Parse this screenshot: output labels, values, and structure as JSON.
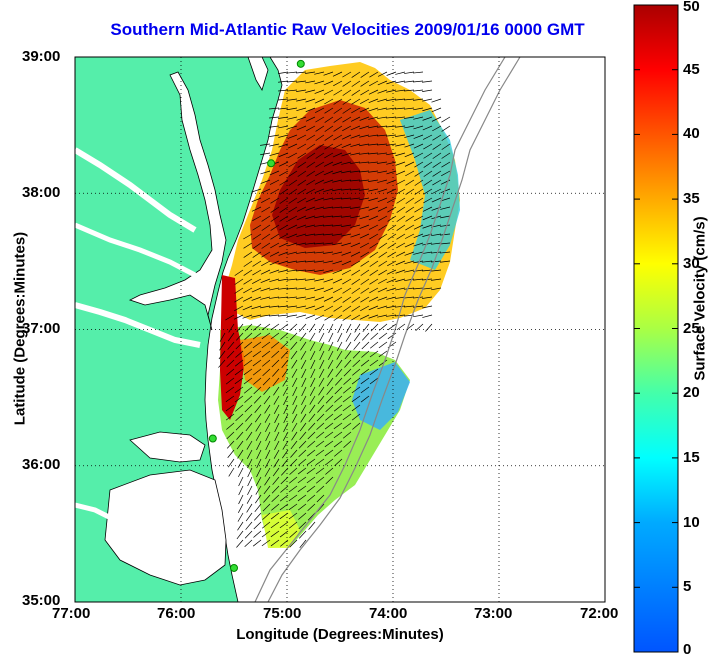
{
  "title": "Southern Mid-Atlantic Raw Velocities 2009/01/16 0000 GMT",
  "map": {
    "xlabel": "Longitude (Degrees:Minutes)",
    "ylabel": "Latitude (Degrees:Minutes)",
    "lon_range": [
      -77,
      -72
    ],
    "lat_range": [
      35,
      39
    ],
    "lon_ticks": [
      "77:00",
      "76:00",
      "75:00",
      "74:00",
      "73:00",
      "72:00"
    ],
    "lat_ticks": [
      "39:00",
      "38:00",
      "37:00",
      "36:00",
      "35:00"
    ],
    "grid": "dotted",
    "land_color": "#55eeaa",
    "background_color": "#ffffff",
    "sites": [
      [
        -74.87,
        38.95
      ],
      [
        -75.15,
        38.22
      ],
      [
        -75.7,
        36.2
      ],
      [
        -75.5,
        35.25
      ]
    ]
  },
  "colorbar": {
    "label": "Surface Velocity (cm/s)",
    "min": 0,
    "max": 50,
    "ticks": [
      "0",
      "5",
      "10",
      "15",
      "20",
      "25",
      "30",
      "35",
      "40",
      "45",
      "50"
    ],
    "colormap": "jet"
  }
}
